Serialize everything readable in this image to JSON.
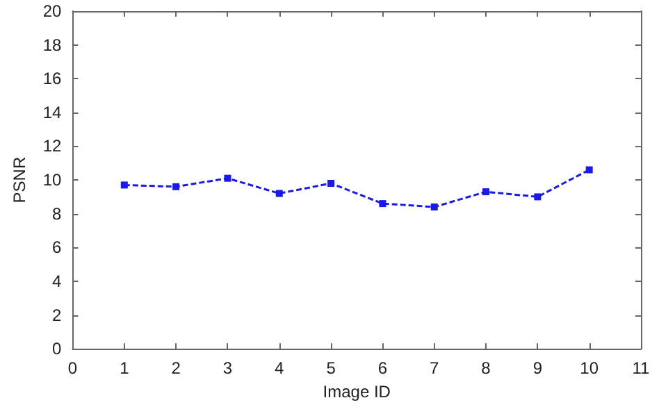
{
  "chart_data": {
    "type": "line",
    "xlabel": "Image ID",
    "ylabel": "PSNR",
    "x": [
      1,
      2,
      3,
      4,
      5,
      6,
      7,
      8,
      9,
      10
    ],
    "series": [
      {
        "color": "#1a1ae6",
        "values": [
          9.7,
          9.6,
          10.1,
          9.2,
          9.8,
          8.6,
          8.4,
          9.3,
          9.0,
          10.6
        ]
      }
    ],
    "xlim": [
      0,
      11
    ],
    "xticks": [
      0,
      1,
      2,
      3,
      4,
      5,
      6,
      7,
      8,
      9,
      10,
      11
    ],
    "ylim": [
      0,
      20
    ],
    "yticks": [
      0,
      2,
      4,
      6,
      8,
      10,
      12,
      14,
      16,
      18,
      20
    ],
    "grid": false,
    "marker": "square",
    "line_style": "dashed"
  }
}
